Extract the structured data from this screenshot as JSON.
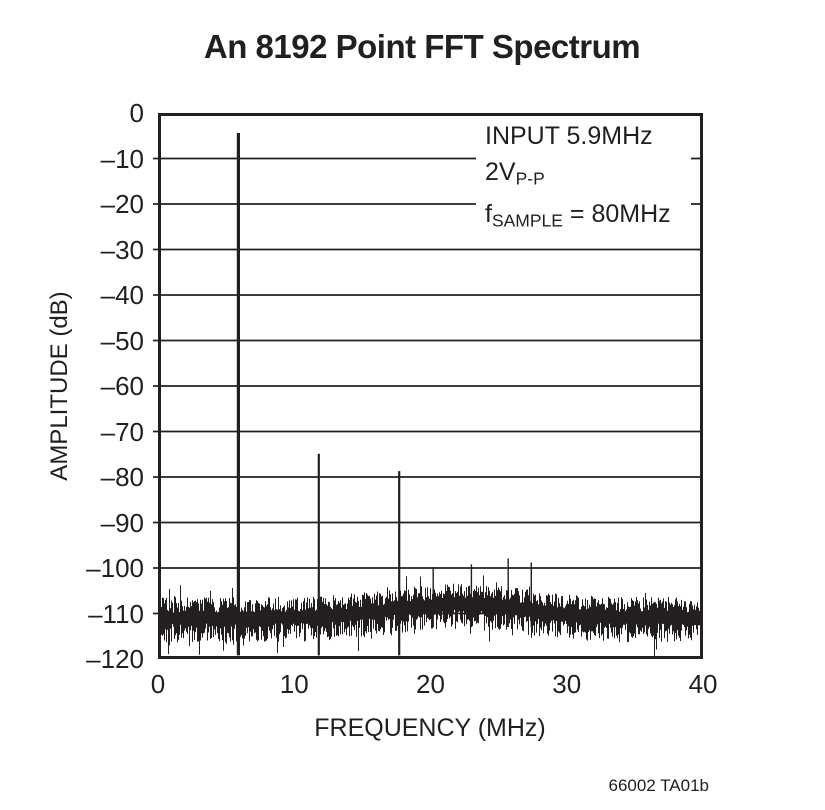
{
  "page": {
    "caption": "66002 TA01b"
  },
  "chart_data": {
    "type": "line",
    "title": "An 8192 Point FFT Spectrum",
    "xlabel": "FREQUENCY (MHz)",
    "ylabel": "AMPLITUDE (dB)",
    "xlim": [
      0,
      40
    ],
    "ylim": [
      -120,
      0
    ],
    "x_ticks": [
      0,
      10,
      20,
      30,
      40
    ],
    "y_ticks": [
      0,
      -10,
      -20,
      -30,
      -40,
      -50,
      -60,
      -70,
      -80,
      -90,
      -100,
      -110,
      -120
    ],
    "grid": "horizontal-only",
    "legend": null,
    "annotations": [
      {
        "segments": [
          {
            "t": "INPUT 5.9MHz"
          }
        ]
      },
      {
        "segments": [
          {
            "t": "2V"
          },
          {
            "sub": "P-P"
          }
        ]
      },
      {
        "segments": [
          {
            "t": "f"
          },
          {
            "sub": "SAMPLE"
          },
          {
            "t": " = 80MHz"
          }
        ]
      }
    ],
    "peaks": [
      {
        "name": "fundamental",
        "freq_mhz": 5.9,
        "amplitude_db": -4.4
      },
      {
        "name": "second-harmonic",
        "freq_mhz": 11.8,
        "amplitude_db": -74.9
      },
      {
        "name": "third-harmonic",
        "freq_mhz": 17.7,
        "amplitude_db": -78.7
      }
    ],
    "spurs": [
      {
        "freq_mhz": 20.2,
        "amplitude_db": -99.8
      },
      {
        "freq_mhz": 23.0,
        "amplitude_db": -99.2
      },
      {
        "freq_mhz": 25.7,
        "amplitude_db": -97.9
      },
      {
        "freq_mhz": 27.4,
        "amplitude_db": -98.8
      }
    ],
    "noise_floor": {
      "mean_db": -111,
      "typical_spread_db": 5,
      "min_db": -119.5,
      "hump": {
        "center_mhz": 22,
        "sigma_mhz": 4.8,
        "height_db": 3.0
      }
    },
    "colors": {
      "ink": "#231f20",
      "background": "#ffffff"
    }
  }
}
